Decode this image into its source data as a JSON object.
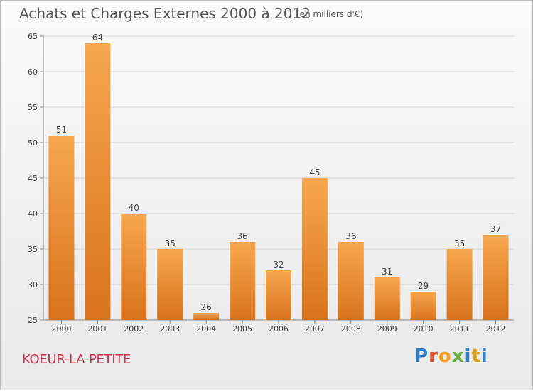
{
  "header": {
    "title": "Achats et Charges Externes 2000 à 2012",
    "unit": "(en milliers d'€)"
  },
  "footer": {
    "commune": "KOEUR-LA-PETITE",
    "logo_text": "Proxiti"
  },
  "colors": {
    "bar_top": "#f7a74e",
    "bar_bottom": "#d9731c",
    "commune_text": "#c8324b",
    "grid": "#d2d2d2"
  },
  "chart_data": {
    "type": "bar",
    "categories": [
      "2000",
      "2001",
      "2002",
      "2003",
      "2004",
      "2005",
      "2006",
      "2007",
      "2008",
      "2009",
      "2010",
      "2011",
      "2012"
    ],
    "values": [
      51,
      64,
      40,
      35,
      26,
      36,
      32,
      45,
      36,
      31,
      29,
      35,
      37
    ],
    "title": "Achats et Charges Externes 2000 à 2012",
    "subtitle": "(en milliers d'€)",
    "ylim": [
      25,
      65
    ],
    "yticks": [
      25,
      30,
      35,
      40,
      45,
      50,
      55,
      60,
      65
    ],
    "grid": true,
    "data_labels": true
  }
}
